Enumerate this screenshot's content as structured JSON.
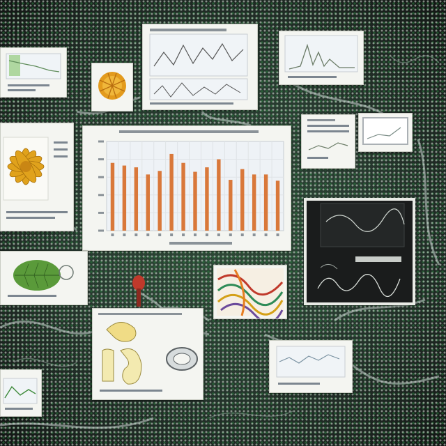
{
  "image": {
    "description_free": true
  },
  "chart_data": [
    {
      "type": "bar",
      "categories": [
        "",
        "",
        "",
        "",
        "",
        "",
        "",
        "",
        "",
        "",
        "",
        "",
        "",
        "",
        ""
      ],
      "values": [
        76,
        73,
        71,
        63,
        67,
        86,
        76,
        66,
        71,
        80,
        57,
        69,
        63,
        63,
        56
      ],
      "ylim": [
        0,
        100
      ],
      "grid": true,
      "colors": {
        "bar": "#d9783a",
        "plot_bg": "#eef2f6"
      }
    }
  ],
  "palette": {
    "accent_orange": "#d9783a",
    "leaf_green": "#5a9a3a",
    "flower_gold": "#e0a21c",
    "dark_panel": "#1a1c1c"
  }
}
